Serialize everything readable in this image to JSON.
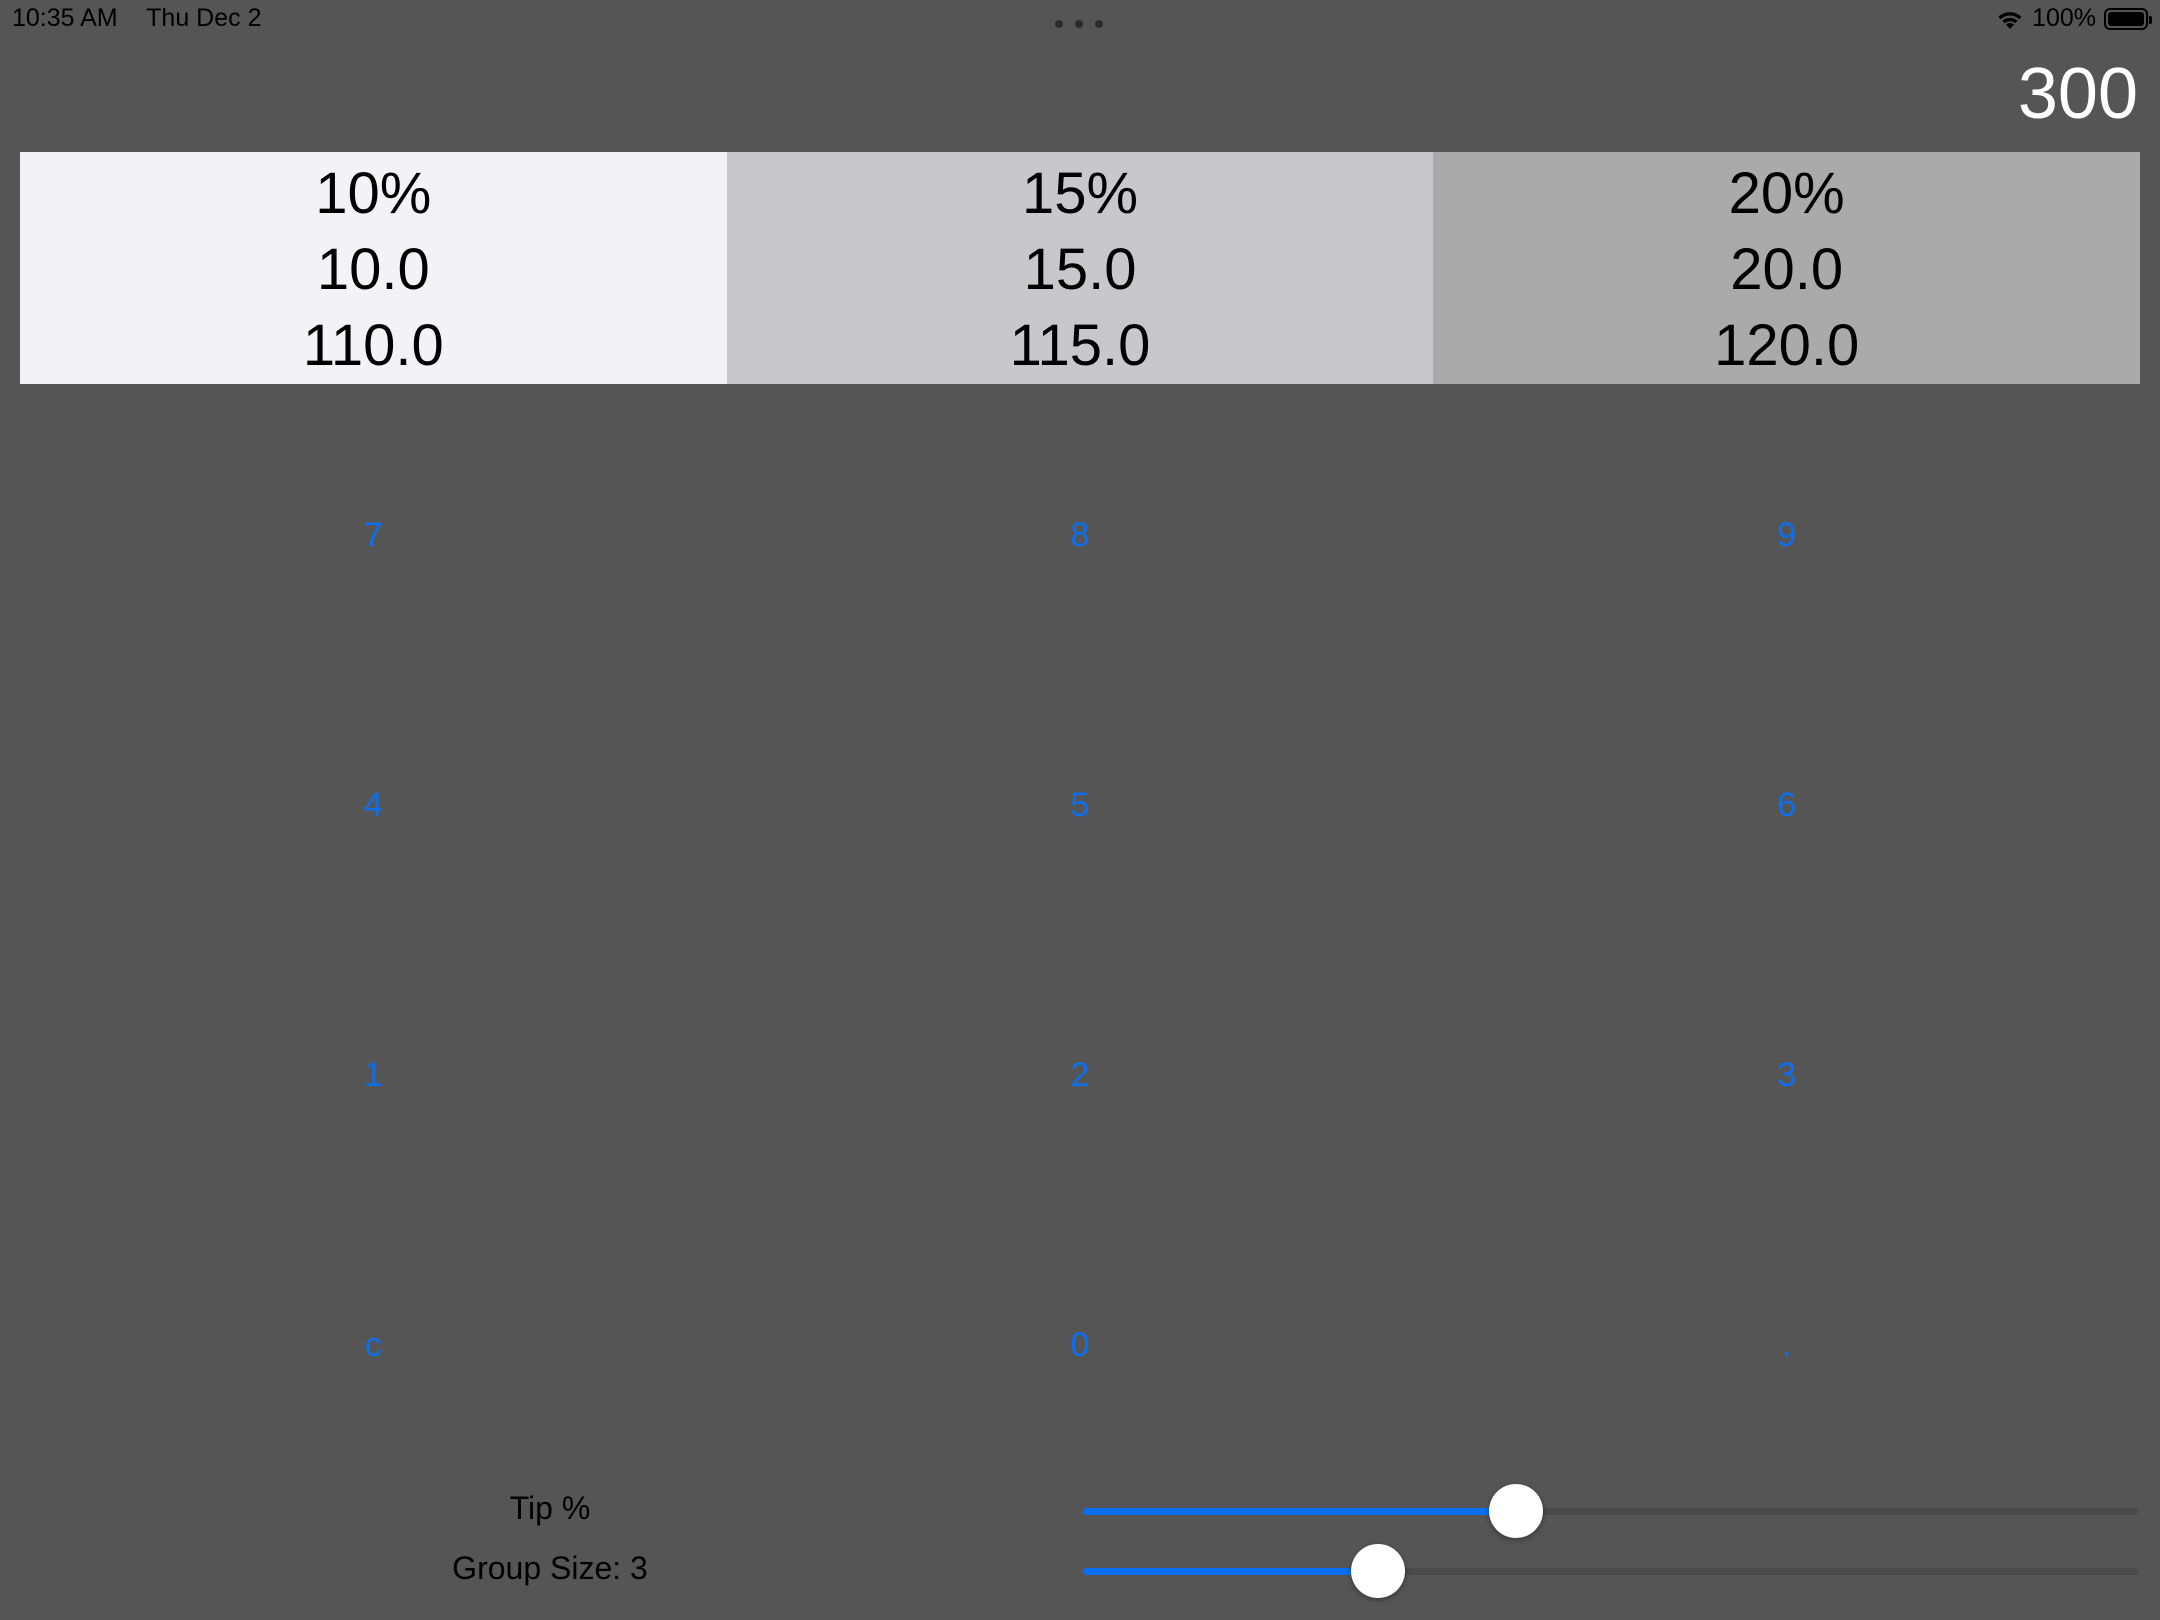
{
  "status_bar": {
    "time": "10:35 AM",
    "date": "Thu Dec 2",
    "battery": "100%"
  },
  "bill_amount": "300",
  "tip_options": [
    {
      "percent": "10%",
      "tip": "10.0",
      "total": "110.0",
      "bg": "#f2f2f7"
    },
    {
      "percent": "15%",
      "tip": "15.0",
      "total": "115.0",
      "bg": "#c7c7cc"
    },
    {
      "percent": "20%",
      "tip": "20.0",
      "total": "120.0",
      "bg": "#aaaaaa"
    }
  ],
  "keypad": {
    "keys": [
      "7",
      "8",
      "9",
      "4",
      "5",
      "6",
      "1",
      "2",
      "3",
      "c",
      "0",
      "."
    ]
  },
  "sliders": {
    "tip_label": "Tip %",
    "tip_level": 0.41,
    "group_label": "Group Size: 3",
    "group_level": 0.28
  },
  "colors": {
    "background": "#555555",
    "accent": "#0a6ff0"
  }
}
